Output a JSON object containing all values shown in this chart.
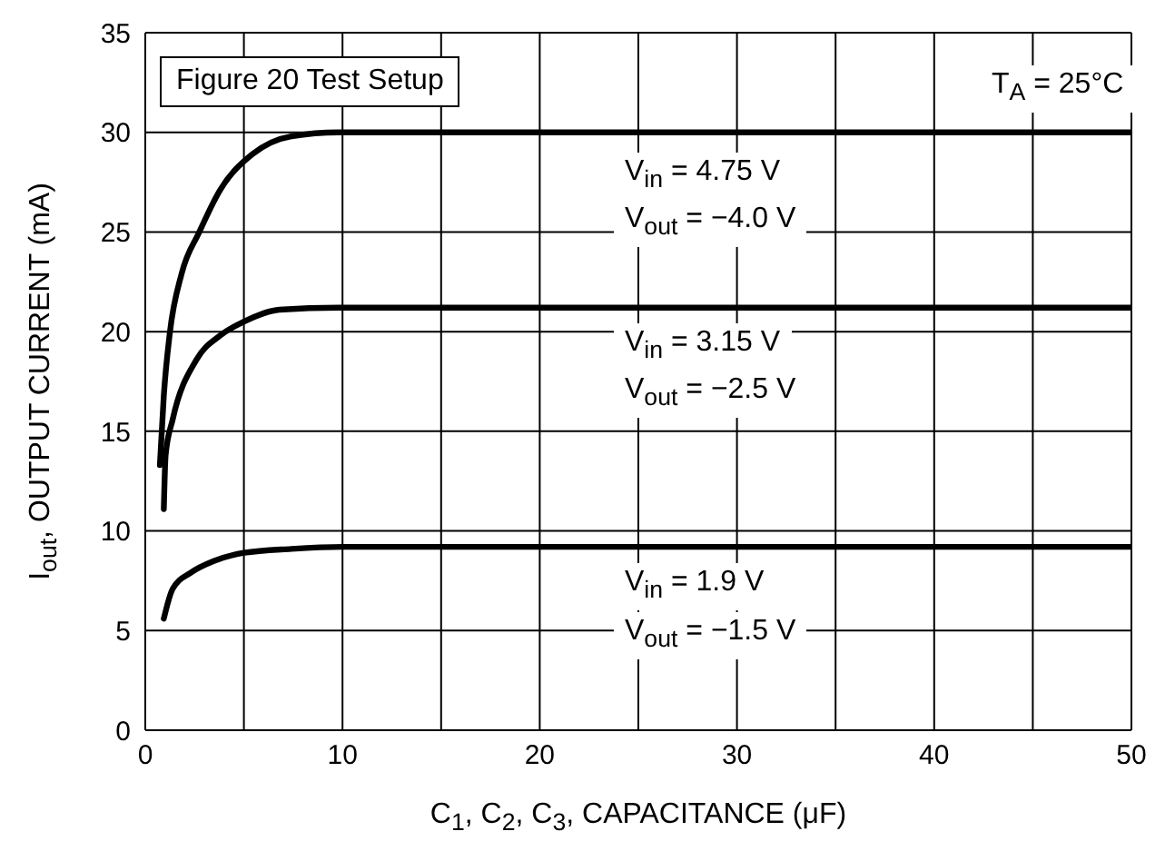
{
  "chart_data": {
    "type": "line",
    "xlabel": "C$_{1}$, C$_{2}$, C$_{3}$, CAPACITANCE (μF)",
    "ylabel": "I$_{out}$, OUTPUT CURRENT (mA)",
    "xlim": [
      0,
      50
    ],
    "xticks": [
      0,
      {
        "value": 5,
        "label": null
      },
      10,
      {
        "value": 15,
        "label": null
      },
      20,
      {
        "value": 25,
        "label": null
      },
      30,
      {
        "value": 35,
        "label": null
      },
      40,
      {
        "value": 45,
        "label": null
      },
      50
    ],
    "ylim": [
      0,
      35
    ],
    "yticks": [
      0,
      5,
      10,
      15,
      20,
      25,
      30,
      35
    ],
    "grid": true,
    "marker": "none",
    "line_style": "solid",
    "series": [
      {
        "color": "#000000",
        "x": [
          0.74,
          0.94,
          1.24,
          1.84,
          2.74,
          3.79,
          5.43,
          7.4,
          9.8,
          50
        ],
        "values": [
          13.3,
          16.8,
          19.9,
          22.9,
          25.0,
          27.1,
          28.9,
          29.8,
          30.0,
          30.0
        ]
      },
      {
        "color": "#000000",
        "x": [
          0.94,
          1.03,
          1.39,
          2.6,
          3.79,
          5.0,
          6.8,
          9.8,
          50
        ],
        "values": [
          11.1,
          13.8,
          15.6,
          18.6,
          19.8,
          20.5,
          21.1,
          21.2,
          21.2
        ]
      },
      {
        "color": "#000000",
        "x": [
          0.94,
          1.39,
          2.3,
          3.5,
          5.0,
          7.4,
          10,
          50
        ],
        "values": [
          5.6,
          7.1,
          7.9,
          8.5,
          8.9,
          9.1,
          9.2,
          9.2
        ]
      }
    ],
    "annotations": [
      "Figure 20 Test Setup",
      "T$_{A}$ = 25°C",
      "V$_{in}$ = 4.75 V",
      "V$_{out}$ = −4.0 V",
      "V$_{in}$ = 3.15 V",
      "V$_{out}$ = −2.5 V",
      "V$_{in}$ = 1.9 V",
      "V$_{out}$ = −1.5 V"
    ]
  }
}
